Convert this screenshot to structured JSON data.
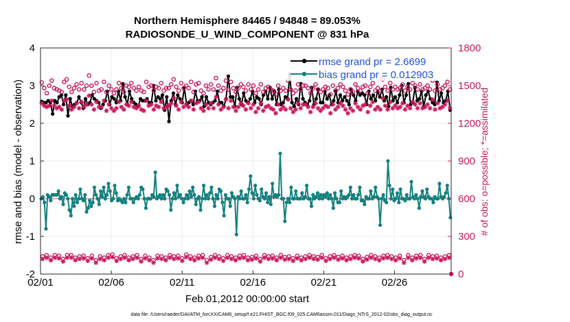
{
  "chart_data": {
    "type": "line",
    "title": "Northern Hemisphere 84465 / 94848 = 89.053%",
    "subtitle": "RADIOSONDE_U_WIND_COMPONENT @ 831 hPa",
    "xlabel": "Feb.01,2012 00:00:00 start",
    "ylabel": "rmse and bias (model - observation)",
    "ylabel_right": "# of obs: o=possible; *=assimilated",
    "footer": "data file: /Users/raeder/DAI/ATM_forcXX/CAM6_setup/f.e21.FHIST_BGC.f09_025.CAM6assim.011/Diags_NTrS_2012-02/obs_diag_output.nc",
    "xlim": [
      0,
      29
    ],
    "ylim": [
      -2,
      4
    ],
    "ylim_right": [
      0,
      1800
    ],
    "x_ticks": [
      0,
      5,
      10,
      15,
      20,
      25
    ],
    "x_tick_labels": [
      "02/01",
      "02/06",
      "02/11",
      "02/16",
      "02/21",
      "02/26"
    ],
    "y_ticks": [
      -2,
      -1,
      0,
      1,
      2,
      3,
      4
    ],
    "y_tick_labels": [
      "-2",
      "-1",
      "0",
      "1",
      "2",
      "3",
      "4"
    ],
    "y_ticks_right": [
      0,
      300,
      600,
      900,
      1200,
      1500,
      1800
    ],
    "y_tick_labels_right": [
      "0",
      "300",
      "600",
      "900",
      "1200",
      "1500",
      "1800"
    ],
    "zero_line": 0,
    "legend": [
      "rmse grand pr = 2.6699",
      "bias grand pr = 0.012903"
    ],
    "series": [
      {
        "name": "rmse",
        "color": "#000000",
        "axis": "left",
        "marker": "dot",
        "values": [
          2.58,
          2.55,
          2.55,
          2.6,
          2.55,
          2.25,
          2.6,
          2.55,
          2.7,
          2.75,
          2.5,
          2.75,
          2.2,
          2.65,
          2.45,
          2.5,
          2.55,
          2.7,
          2.55,
          2.4,
          2.65,
          2.5,
          2.55,
          2.75,
          2.65,
          2.6,
          2.55,
          2.4,
          2.5,
          2.6,
          2.85,
          2.5,
          2.7,
          2.65,
          2.55,
          2.85,
          2.6,
          3.05,
          2.7,
          2.5,
          2.85,
          2.65,
          2.55,
          2.5,
          2.45,
          2.65,
          2.6,
          2.6,
          2.65,
          2.55,
          2.55,
          3.0,
          2.6,
          2.7,
          2.65,
          2.75,
          2.35,
          2.7,
          2.05,
          2.6,
          2.8,
          2.5,
          2.75,
          2.65,
          2.55,
          2.95,
          2.5,
          2.55,
          2.6,
          2.5,
          2.85,
          2.6,
          2.6,
          2.7,
          2.45,
          2.7,
          2.55,
          2.5,
          2.55,
          2.6,
          2.85,
          2.55,
          2.55,
          2.45,
          2.65,
          3.25,
          2.7,
          2.7,
          2.45,
          2.95,
          2.65,
          2.5,
          2.8,
          2.6,
          2.55,
          2.65,
          2.85,
          2.55,
          2.7,
          2.65,
          2.5,
          2.75,
          2.85,
          2.65,
          2.95,
          2.65,
          2.85,
          2.5,
          2.9,
          2.5,
          2.55,
          2.7,
          2.65,
          3.3,
          2.55,
          2.45,
          2.65,
          2.5,
          3.05,
          2.65,
          2.55,
          2.5,
          2.6,
          2.95,
          2.5,
          2.65,
          2.9,
          2.55,
          2.55,
          2.85,
          2.65,
          2.75,
          2.5,
          2.6,
          2.85,
          2.55,
          2.75,
          2.6,
          2.7,
          2.6,
          2.5,
          2.9,
          2.75,
          2.6,
          2.85,
          2.75,
          2.8,
          2.75,
          2.5,
          2.85,
          2.65,
          2.75,
          2.6,
          2.85,
          2.7,
          2.9,
          2.6,
          2.7,
          2.45,
          2.95,
          2.6,
          2.7,
          2.55,
          2.75,
          3.0,
          2.55,
          2.75,
          3.05,
          2.5,
          2.55,
          2.95,
          2.6,
          2.65,
          2.85,
          2.45,
          2.75,
          2.85,
          2.65,
          2.55,
          2.5,
          3.1,
          2.6,
          2.8,
          2.55,
          2.6,
          2.85,
          2.35
        ]
      },
      {
        "name": "bias",
        "color": "#12807f",
        "axis": "left",
        "marker": "dot",
        "values": [
          0.0,
          0.05,
          -0.1,
          -0.8,
          0.1,
          0.05,
          -0.05,
          0.1,
          0.1,
          0.1,
          0.1,
          0.2,
          0.0,
          0.05,
          -0.15,
          0.15,
          0.1,
          0.0,
          -0.3,
          -0.45,
          0.0,
          -0.2,
          0.1,
          -0.1,
          0.0,
          0.25,
          0.0,
          -0.05,
          0.1,
          -0.35,
          -0.25,
          -0.05,
          -0.2,
          -0.1,
          0.3,
          0.1,
          0.0,
          -0.15,
          0.2,
          0.05,
          0.3,
          0.0,
          0.1,
          0.4,
          0.2,
          -0.05,
          0.0,
          0.35,
          0.15,
          -0.05,
          0.0,
          -0.05,
          -0.1,
          0.0,
          -0.1,
          0.1,
          0.3,
          0.0,
          0.0,
          -0.1,
          0.0,
          0.05,
          0.0,
          0.1,
          0.3,
          0.25,
          0.0,
          -0.25,
          0.0,
          0.0,
          0.0,
          0.1,
          0.05,
          0.7,
          0.0,
          0.05,
          0.1,
          0.0,
          0.1,
          0.0,
          0.25,
          0.2,
          0.1,
          -0.3,
          0.0,
          0.15,
          0.0,
          0.35,
          0.05,
          0.1,
          0.0,
          -0.1,
          0.0,
          0.1,
          0.0,
          0.2,
          0.05,
          0.3,
          0.1,
          -0.15,
          0.0,
          0.05,
          -0.3,
          0.0,
          0.35,
          0.0,
          0.1,
          0.0,
          0.15,
          0.3,
          0.0,
          -0.2,
          0.1,
          0.0,
          0.25,
          0.2,
          -0.1,
          -0.45,
          0.1,
          0.0,
          0.0,
          -0.2,
          0.15,
          0.05,
          0.0,
          -0.95,
          0.05,
          0.0,
          0.2,
          0.0,
          0.0,
          0.1,
          -0.1,
          0.25,
          0.6,
          0.15,
          0.0,
          0.35,
          0.1,
          0.0,
          -0.05,
          0.25,
          0.05,
          0.0,
          0.15,
          -0.1,
          0.05,
          -0.15,
          0.4,
          0.05,
          0.1,
          0.05,
          0.1,
          1.2,
          0.0,
          0.0,
          -0.6,
          -0.1,
          0.0,
          -0.1,
          0.3,
          0.0,
          0.0,
          0.2,
          0.0,
          0.0,
          0.0,
          0.15,
          0.0,
          0.05,
          0.35,
          0.0,
          0.0,
          -0.2,
          0.1,
          0.0,
          0.05,
          0.15,
          0.0,
          0.1,
          0.0,
          0.1,
          0.05,
          0.15,
          0.0,
          0.1,
          0.0,
          -0.25,
          0.15,
          0.0,
          -0.1,
          -0.1,
          0.2,
          0.0,
          0.05,
          0.0,
          0.05,
          0.1,
          0.3,
          0.0,
          0.1,
          0.0,
          0.0,
          0.1,
          0.3,
          -0.05,
          -0.05,
          -0.15,
          0.05,
          0.0,
          0.0,
          0.2,
          0.0,
          0.05,
          0.3,
          0.05,
          0.0,
          -0.7,
          0.0,
          0.1,
          -0.05,
          -0.1,
          1.0,
          0.35,
          0.0,
          0.25,
          -0.05,
          0.0,
          0.15,
          -0.1,
          0.25,
          0.0,
          0.0,
          -0.05,
          0.1,
          0.0,
          0.0,
          0.45,
          0.05,
          0.0,
          0.1,
          0.0,
          -0.25,
          0.05,
          0.2,
          0.05,
          0.0,
          0.25,
          0.05,
          0.0,
          0.0,
          -0.1,
          0.05,
          0.0,
          0.0,
          0.4,
          0.05,
          0.0,
          0.05,
          0.15,
          0.35,
          0.0,
          -0.5
        ]
      },
      {
        "name": "obs possible",
        "color": "#c8175a",
        "axis": "right",
        "marker": "circle",
        "values": [
          1525,
          1480,
          1440,
          1500,
          1540,
          1480,
          1470,
          1460,
          1450,
          1530,
          1550,
          1490,
          1450,
          1480,
          1510,
          1470,
          1520,
          1470,
          1500,
          1580,
          1500,
          1450,
          1520,
          1460,
          1470,
          1530,
          1450,
          1500,
          1470,
          1440,
          1470,
          1520,
          1480,
          1450,
          1500,
          1490,
          1520,
          1480,
          1460,
          1490,
          1460,
          1450,
          1530,
          1490,
          1500,
          1460,
          1490,
          1480,
          1520,
          1460,
          1480,
          1480,
          1510,
          1550,
          1490,
          1460,
          1520,
          1480,
          1500,
          1480,
          1530,
          1450,
          1510,
          1520,
          1460,
          1440,
          1500,
          1470,
          1510,
          1470,
          1560,
          1500,
          1460,
          1480,
          1540,
          1470,
          1530,
          1480,
          1450,
          1480,
          1510,
          1490,
          1460,
          1510,
          1470,
          1500,
          1440,
          1470,
          1510,
          1450,
          1480,
          1490,
          1470,
          1460,
          1430,
          1500,
          1460,
          1480,
          1460,
          1540,
          1470,
          1440,
          1460,
          1510,
          1470,
          1500,
          1500,
          1480,
          1440,
          1480,
          1510,
          1470,
          1450,
          1470,
          1490,
          1480,
          1430,
          1500,
          1460,
          1480,
          1510,
          1490,
          1460,
          1430,
          1470,
          1450,
          1510,
          1480,
          1460,
          1490,
          1500,
          1440,
          1490,
          1520,
          1460,
          1480,
          1460,
          1550,
          1490,
          1460,
          1520,
          1470,
          1490,
          1470,
          1480,
          1510,
          1460,
          1490,
          1470,
          1520,
          1500,
          1470,
          1510,
          1470,
          1480,
          1500,
          1470,
          1540,
          1460,
          1510,
          1470,
          1480,
          1500,
          1530,
          1470
        ]
      },
      {
        "name": "obs assimilated",
        "color": "#c8175a",
        "axis": "right",
        "marker": "star",
        "values": [
          1360,
          1340,
          1330,
          1340,
          1380,
          1340,
          1320,
          1330,
          1310,
          1380,
          1390,
          1340,
          1310,
          1330,
          1360,
          1320,
          1370,
          1330,
          1350,
          1420,
          1350,
          1310,
          1370,
          1330,
          1330,
          1380,
          1300,
          1350,
          1320,
          1300,
          1320,
          1370,
          1330,
          1310,
          1350,
          1340,
          1370,
          1330,
          1320,
          1340,
          1310,
          1300,
          1380,
          1340,
          1350,
          1310,
          1340,
          1330,
          1370,
          1320,
          1330,
          1340,
          1360,
          1400,
          1340,
          1310,
          1370,
          1330,
          1350,
          1330,
          1380,
          1310,
          1360,
          1370,
          1320,
          1300,
          1350,
          1320,
          1360,
          1320,
          1410,
          1350,
          1310,
          1330,
          1390,
          1320,
          1380,
          1330,
          1300,
          1330,
          1360,
          1340,
          1310,
          1360,
          1320,
          1350,
          1290,
          1320,
          1360,
          1300,
          1330,
          1340,
          1320,
          1310,
          1280,
          1350,
          1310,
          1330,
          1310,
          1390,
          1320,
          1290,
          1310,
          1360,
          1320,
          1350,
          1350,
          1330,
          1290,
          1330,
          1360,
          1320,
          1300,
          1320,
          1340,
          1330,
          1280,
          1350,
          1310,
          1330,
          1360,
          1340,
          1310,
          1280,
          1320,
          1300,
          1360,
          1330,
          1310,
          1340,
          1350,
          1290,
          1340,
          1370,
          1310,
          1330,
          1310,
          1400,
          1340,
          1310,
          1370,
          1320,
          1340,
          1320,
          1330,
          1360,
          1310,
          1340,
          1320,
          1370,
          1350,
          1320,
          1360,
          1320,
          1330,
          1350,
          1320,
          1390,
          1310,
          1360,
          1320,
          1330,
          1350,
          1380,
          1320
        ]
      },
      {
        "name": "obs possible (low)",
        "color": "#c8175a",
        "axis": "right",
        "marker": "circle",
        "values": [
          140,
          150,
          130,
          150,
          145,
          120,
          150,
          150,
          130,
          140,
          145,
          125,
          145,
          110,
          140,
          130,
          150,
          155,
          125,
          140,
          150,
          130,
          140,
          150,
          120,
          145,
          130,
          110,
          145,
          140,
          130,
          150,
          140,
          145,
          125,
          155,
          140,
          130,
          145,
          150,
          110,
          135,
          150,
          140,
          125,
          150,
          140,
          130,
          145,
          150,
          130,
          135,
          145,
          120,
          150,
          140,
          145,
          130,
          150,
          135,
          140,
          125,
          145,
          130,
          140,
          150,
          140,
          135,
          150,
          125,
          140,
          150,
          135,
          145,
          130,
          140,
          150,
          145,
          120,
          135,
          150,
          140,
          130,
          145,
          150,
          140,
          130,
          145,
          110,
          150,
          130,
          145,
          150,
          120,
          150,
          140,
          145,
          130,
          140,
          150
        ]
      },
      {
        "name": "obs assimilated (low)",
        "color": "#c8175a",
        "axis": "right",
        "marker": "star",
        "values": [
          120,
          130,
          110,
          130,
          125,
          100,
          130,
          130,
          110,
          120,
          125,
          105,
          125,
          90,
          120,
          110,
          130,
          135,
          105,
          120,
          130,
          110,
          120,
          130,
          100,
          125,
          110,
          90,
          125,
          120,
          110,
          130,
          120,
          125,
          105,
          135,
          120,
          110,
          125,
          130,
          90,
          115,
          130,
          120,
          105,
          130,
          120,
          110,
          125,
          130,
          110,
          115,
          125,
          100,
          130,
          120,
          125,
          110,
          130,
          115,
          120,
          105,
          125,
          110,
          120,
          130,
          120,
          115,
          130,
          105,
          120,
          130,
          115,
          125,
          110,
          120,
          130,
          125,
          100,
          115,
          130,
          120,
          110,
          125,
          130,
          120,
          110,
          125,
          90,
          130,
          110,
          125,
          130,
          100,
          130,
          120,
          125,
          110,
          120,
          130
        ]
      }
    ]
  }
}
